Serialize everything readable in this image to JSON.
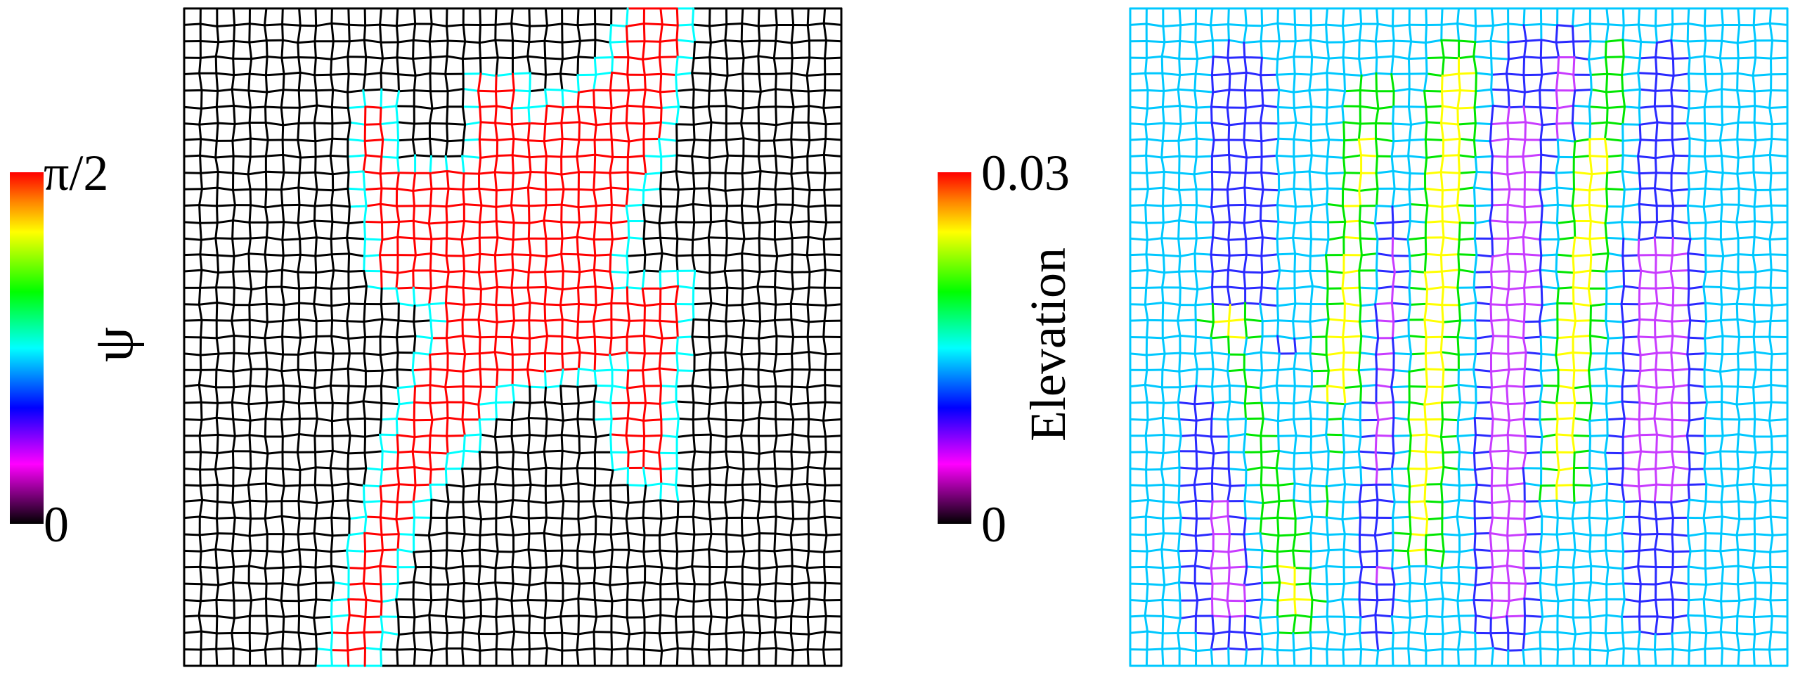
{
  "figure": {
    "left_panel": {
      "colorbar": {
        "max_label": "π/2",
        "min_label": "0",
        "quantity_label": "ψ",
        "colormap": [
          "#000000",
          "#ff00ff",
          "#0000ff",
          "#00ffff",
          "#00ff00",
          "#ffff00",
          "#ff7f00",
          "#ff0000"
        ]
      },
      "grid_colors": {
        "background": "#000000",
        "boundary": "#00ffff",
        "region": "#ff0000"
      }
    },
    "right_panel": {
      "colorbar": {
        "max_label": "0.03",
        "min_label": "0",
        "quantity_label": "Elevation",
        "colormap": [
          "#000000",
          "#ff00ff",
          "#0000ff",
          "#00ffff",
          "#00ff00",
          "#ffff00",
          "#ff7f00",
          "#ff0000"
        ]
      },
      "grid_colors": {
        "base": "#00c8ff",
        "valley": "#2a2aff",
        "trough": "#c83cff",
        "ridge": "#00e600",
        "crest": "#ffff00",
        "peak": "#ff8c00"
      }
    }
  }
}
